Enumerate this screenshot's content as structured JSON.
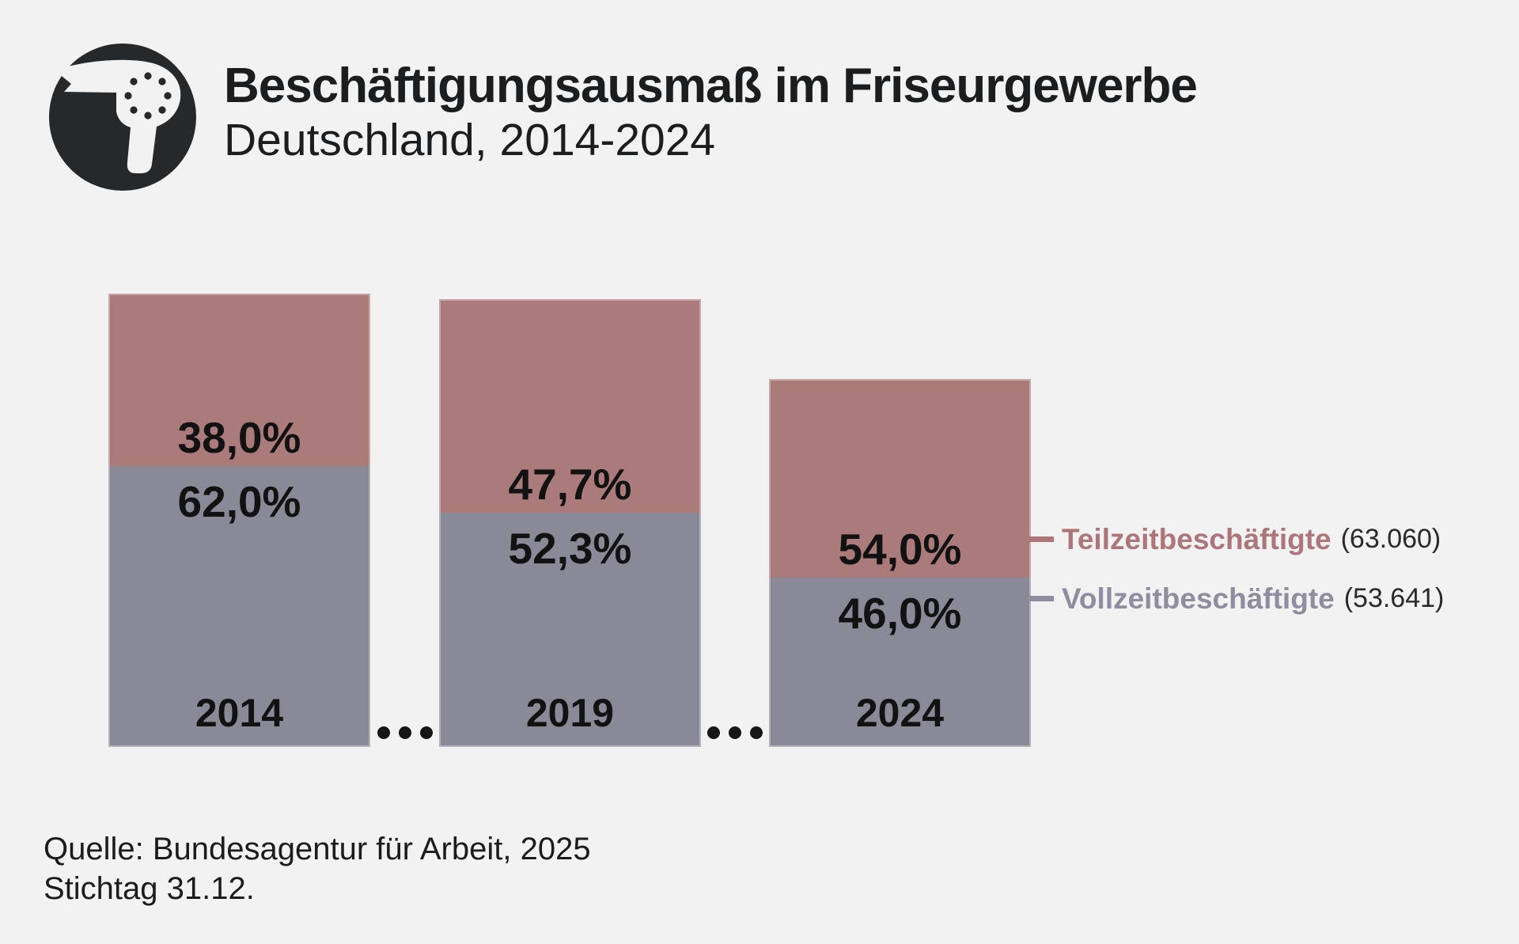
{
  "page": {
    "background_color": "#f2f2f2",
    "logo_icon": "hairdryer-icon",
    "logo_colors": {
      "circle": "#26282a",
      "glyph": "#f2f2f2"
    }
  },
  "header": {
    "title": "Beschäftigungsausmaß im Friseurgewerbe",
    "subtitle": "Deutschland, 2014-2024"
  },
  "chart_data": {
    "type": "bar",
    "stacked": true,
    "title": "Beschäftigungsausmaß im Friseurgewerbe",
    "subtitle": "Deutschland, 2014-2024",
    "categories": [
      "2014",
      "2019",
      "2024"
    ],
    "series": [
      {
        "name": "Teilzeitbeschäftigte",
        "position": "top",
        "color": "#ab7a7a",
        "values_pct": [
          38.0,
          47.7,
          54.0
        ],
        "labels": [
          "38,0%",
          "47,7%",
          "54,0%"
        ],
        "count_2024": "63.060"
      },
      {
        "name": "Vollzeitbeschäftigte",
        "position": "bottom",
        "color": "#8a8997",
        "values_pct": [
          62.0,
          52.3,
          46.0
        ],
        "labels": [
          "62,0%",
          "52,3%",
          "46,0%"
        ],
        "count_2024": "53.641"
      }
    ],
    "bar_relative_total_heights": [
      1.0,
      0.988,
      0.812
    ],
    "value_format": "percent, German comma decimal",
    "legend_position": "right of last bar",
    "legend": [
      {
        "label": "Teilzeitbeschäftigte",
        "count": "(63.060)",
        "color": "#ad767b"
      },
      {
        "label": "Vollzeitbeschäftigte",
        "count": "(53.641)",
        "color": "#908da0"
      }
    ],
    "gap_separator": {
      "style": "dots",
      "count": 3,
      "color": "#161616"
    },
    "grid": false,
    "axes_shown": false
  },
  "footer": {
    "source_line1": "Quelle: Bundesagentur für Arbeit, 2025",
    "source_line2": "Stichtag 31.12."
  }
}
